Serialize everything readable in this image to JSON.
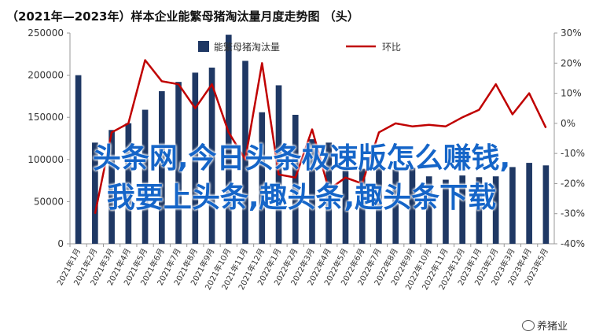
{
  "title": "（2021年—2023年）样本企业能繁母猪淘汰量月度走势图 （头）",
  "overlay_text": {
    "line1": "头条网,今日头条极速版怎么赚钱,",
    "line2": "我要上头条,趣头条,趣头条下载"
  },
  "watermark": "养猪业",
  "colors": {
    "bar": "#1f3864",
    "line": "#c00000",
    "overlay": "#1565c8"
  },
  "chart_data": {
    "type": "bar",
    "title": "（2021年—2023年）样本企业能繁母猪淘汰量月度走势图 （头）",
    "categories": [
      "2021年1月",
      "2021年2月",
      "2021年3月",
      "2021年4月",
      "2021年5月",
      "2021年6月",
      "2021年7月",
      "2021年8月",
      "2021年9月",
      "2021年10月",
      "2021年11月",
      "2021年12月",
      "2022年1月",
      "2022年2月",
      "2022年3月",
      "2022年4月",
      "2022年5月",
      "2022年6月",
      "2022年7月",
      "2022年8月",
      "2022年9月",
      "2022年10月",
      "2022年11月",
      "2022年12月",
      "2023年1月",
      "2023年2月",
      "2023年3月",
      "2023年4月",
      "2023年5月"
    ],
    "series": [
      {
        "name": "能繁母猪淘汰量",
        "type": "bar",
        "axis": "left",
        "values": [
          200000,
          120000,
          135000,
          143000,
          159000,
          181000,
          192000,
          203000,
          209000,
          248000,
          217000,
          156000,
          188000,
          153000,
          124000,
          120000,
          87000,
          89000,
          97000,
          88000,
          90000,
          80000,
          76000,
          81000,
          79000,
          80000,
          91000,
          96000,
          93000
        ]
      },
      {
        "name": "环比",
        "type": "line",
        "axis": "right",
        "values": [
          null,
          -30,
          -3,
          0,
          21,
          14,
          13,
          5,
          13,
          -3,
          -12,
          20,
          -17,
          -18,
          -2,
          -22,
          -18,
          -20,
          -3,
          0,
          -1,
          -0.5,
          -1,
          2,
          4.5,
          13,
          3,
          10,
          -1.5
        ]
      }
    ],
    "y_left": {
      "min": 0,
      "max": 250000,
      "ticks": [
        "0",
        "50000",
        "100000",
        "150000",
        "200000",
        "250000"
      ]
    },
    "y_right": {
      "min": -40,
      "max": 30,
      "ticks": [
        "-40%",
        "-30%",
        "-20%",
        "-10%",
        "0%",
        "10%",
        "20%",
        "30%"
      ]
    },
    "legend": [
      "能繁母猪淘汰量",
      "环比"
    ],
    "legend_position": "top-center",
    "grid": false
  }
}
